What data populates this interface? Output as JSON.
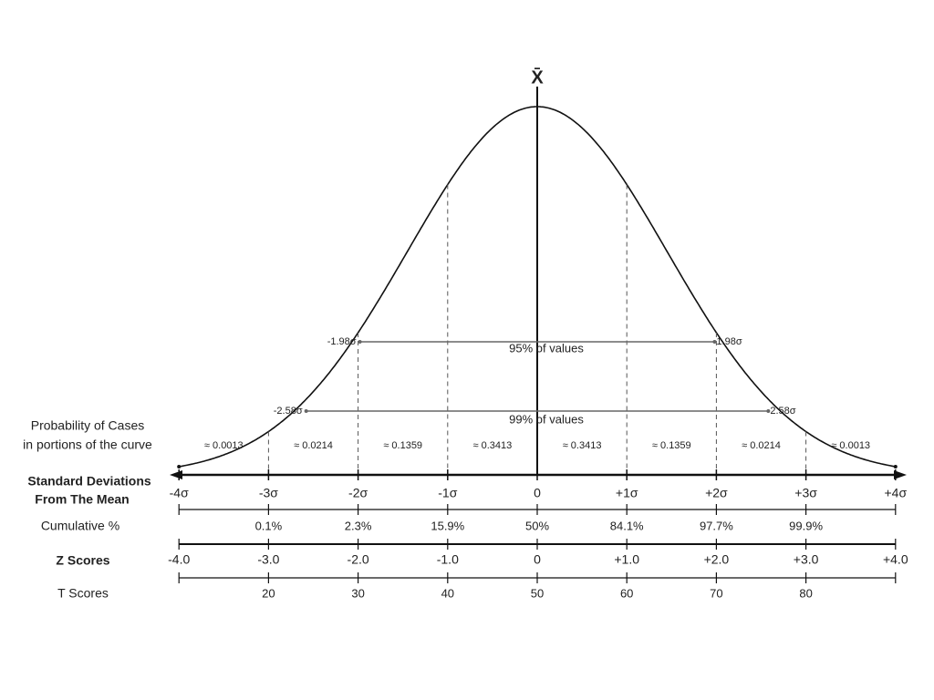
{
  "mean_label": "X̄",
  "intervals": [
    {
      "left": "-1.98σ",
      "right": "1.98σ",
      "label": "95% of values"
    },
    {
      "left": "-2.58σ",
      "right": "2.58σ",
      "label": "99% of values"
    }
  ],
  "probability": {
    "label": [
      "Probability of Cases",
      "in portions of the curve"
    ],
    "values": [
      "≈ 0.0013",
      "≈ 0.0214",
      "≈ 0.1359",
      "≈ 0.3413",
      "≈ 0.3413",
      "≈ 0.1359",
      "≈ 0.0214",
      "≈ 0.0013"
    ]
  },
  "standard_deviations": {
    "label": [
      "Standard Deviations",
      "From The Mean"
    ],
    "ticks": [
      "-4σ",
      "-3σ",
      "-2σ",
      "-1σ",
      "0",
      "+1σ",
      "+2σ",
      "+3σ",
      "+4σ"
    ]
  },
  "cumulative": {
    "label": "Cumulative %",
    "values": [
      "0.1%",
      "2.3%",
      "15.9%",
      "50%",
      "84.1%",
      "97.7%",
      "99.9%"
    ]
  },
  "z_scores": {
    "label": "Z Scores",
    "ticks": [
      "-4.0",
      "-3.0",
      "-2.0",
      "-1.0",
      "0",
      "+1.0",
      "+2.0",
      "+3.0",
      "+4.0"
    ]
  },
  "t_scores": {
    "label": "T Scores",
    "values": [
      "20",
      "30",
      "40",
      "50",
      "60",
      "70",
      "80"
    ]
  }
}
